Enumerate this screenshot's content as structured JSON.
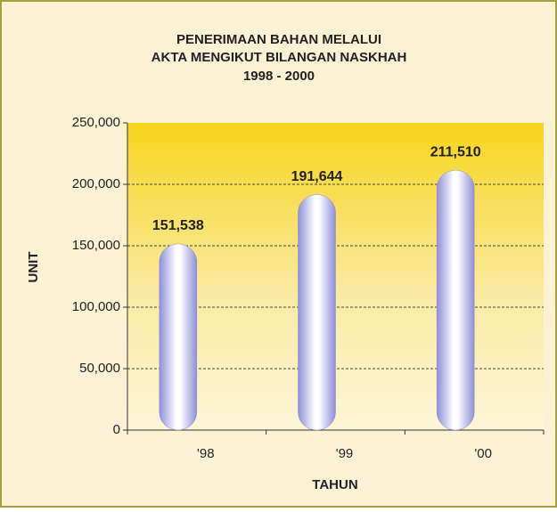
{
  "chart_data": {
    "type": "bar",
    "title": [
      "PENERIMAAN BAHAN MELALUI",
      "AKTA MENGIKUT BILANGAN NASKHAH",
      "1998 - 2000"
    ],
    "y_label": "UNIT",
    "x_label": "TAHUN",
    "categories": [
      "'98",
      "'99",
      "'00"
    ],
    "values": [
      151538,
      191644,
      211510
    ],
    "value_labels": [
      "151,538",
      "191,644",
      "211,510"
    ],
    "color": "#9d9de0",
    "ylim": [
      0,
      250000
    ],
    "yticks": [
      0,
      {
        "value": 50000,
        "label": "50,000"
      },
      {
        "value": 100000,
        "label": "100,000"
      },
      {
        "value": 150000,
        "label": "150,000"
      },
      {
        "value": 200000,
        "label": "200,000"
      },
      {
        "value": 250000,
        "label": "250,000"
      }
    ],
    "grid": true
  }
}
